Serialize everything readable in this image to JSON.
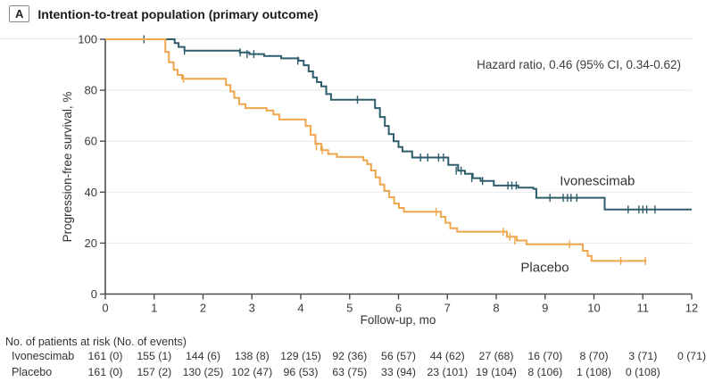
{
  "title": {
    "panel_label": "A",
    "text": "Intention-to-treat population (primary outcome)"
  },
  "chart_data": {
    "type": "line",
    "subtype": "kaplan-meier-step",
    "title": "Intention-to-treat population (primary outcome)",
    "xlabel": "Follow-up, mo",
    "ylabel": "Progression-free survival, %",
    "xlim": [
      0,
      12
    ],
    "ylim": [
      0,
      100
    ],
    "xticks": [
      0,
      1,
      2,
      3,
      4,
      5,
      6,
      7,
      8,
      9,
      10,
      11,
      12
    ],
    "yticks": [
      0,
      20,
      40,
      60,
      80,
      100
    ],
    "grid": "horizontal",
    "legend_position": "curve-labels-inline",
    "annotation": "Hazard ratio, 0.46 (95% CI, 0.34-0.62)",
    "series": [
      {
        "name": "Ivonescimab",
        "color": "#2F5D6C",
        "label_anchor": {
          "t": 9.3,
          "pct": 42.8
        },
        "steps": [
          [
            0,
            100
          ],
          [
            1.35,
            100
          ],
          [
            1.42,
            98.5
          ],
          [
            1.5,
            97
          ],
          [
            1.62,
            95.5
          ],
          [
            2.6,
            95.5
          ],
          [
            2.75,
            94.8
          ],
          [
            2.95,
            94.2
          ],
          [
            3.25,
            93.4
          ],
          [
            3.6,
            92.5
          ],
          [
            3.95,
            91.6
          ],
          [
            4.06,
            89.8
          ],
          [
            4.16,
            87.4
          ],
          [
            4.25,
            85
          ],
          [
            4.33,
            83.2
          ],
          [
            4.42,
            81.5
          ],
          [
            4.52,
            78.5
          ],
          [
            4.62,
            76.3
          ],
          [
            5.45,
            76.3
          ],
          [
            5.52,
            73
          ],
          [
            5.62,
            69.5
          ],
          [
            5.72,
            66
          ],
          [
            5.8,
            62.8
          ],
          [
            5.9,
            60
          ],
          [
            6.0,
            57.7
          ],
          [
            6.08,
            56
          ],
          [
            6.28,
            53.6
          ],
          [
            6.97,
            53.6
          ],
          [
            7.02,
            50.7
          ],
          [
            7.22,
            48.4
          ],
          [
            7.36,
            47.2
          ],
          [
            7.52,
            45.5
          ],
          [
            7.68,
            44.4
          ],
          [
            7.95,
            42.6
          ],
          [
            8.45,
            41.8
          ],
          [
            8.76,
            41.3
          ],
          [
            8.82,
            37.8
          ],
          [
            10.18,
            37.8
          ],
          [
            10.22,
            33.2
          ],
          [
            12,
            33.2
          ]
        ],
        "censor_ticks": [
          [
            0.79,
            100
          ],
          [
            1.62,
            95.5
          ],
          [
            2.76,
            94.8
          ],
          [
            2.9,
            94.2
          ],
          [
            3.04,
            94.2
          ],
          [
            3.94,
            91.6
          ],
          [
            5.16,
            76.3
          ],
          [
            6.45,
            53.6
          ],
          [
            6.6,
            53.6
          ],
          [
            6.82,
            53.6
          ],
          [
            6.92,
            53.6
          ],
          [
            7.18,
            48.4
          ],
          [
            7.28,
            48.4
          ],
          [
            7.5,
            45.5
          ],
          [
            7.72,
            44.4
          ],
          [
            8.24,
            42.6
          ],
          [
            8.32,
            42.6
          ],
          [
            8.41,
            42.6
          ],
          [
            9.1,
            37.8
          ],
          [
            9.37,
            37.8
          ],
          [
            9.46,
            37.8
          ],
          [
            9.53,
            37.8
          ],
          [
            9.65,
            37.8
          ],
          [
            10.7,
            33.2
          ],
          [
            10.92,
            33.2
          ],
          [
            11.0,
            33.2
          ],
          [
            11.08,
            33.2
          ],
          [
            11.25,
            33.2
          ]
        ]
      },
      {
        "name": "Placebo",
        "color": "#EFA64C",
        "label_anchor": {
          "t": 8.5,
          "pct": 8.7
        },
        "steps": [
          [
            0,
            100
          ],
          [
            1.15,
            100
          ],
          [
            1.23,
            95
          ],
          [
            1.3,
            91
          ],
          [
            1.4,
            88
          ],
          [
            1.48,
            86
          ],
          [
            1.57,
            84.5
          ],
          [
            2.37,
            84.5
          ],
          [
            2.47,
            82
          ],
          [
            2.56,
            79.5
          ],
          [
            2.64,
            77
          ],
          [
            2.74,
            74.5
          ],
          [
            2.87,
            73
          ],
          [
            3.3,
            72
          ],
          [
            3.44,
            70.5
          ],
          [
            3.56,
            68.5
          ],
          [
            4.1,
            66
          ],
          [
            4.2,
            62.5
          ],
          [
            4.3,
            59
          ],
          [
            4.42,
            56.5
          ],
          [
            4.56,
            55
          ],
          [
            4.74,
            53.8
          ],
          [
            5.28,
            52.5
          ],
          [
            5.36,
            51
          ],
          [
            5.44,
            48.5
          ],
          [
            5.53,
            45.8
          ],
          [
            5.62,
            43
          ],
          [
            5.71,
            40.5
          ],
          [
            5.81,
            38
          ],
          [
            5.91,
            35.5
          ],
          [
            6.01,
            33.8
          ],
          [
            6.11,
            32.3
          ],
          [
            6.75,
            32.3
          ],
          [
            6.87,
            30.3
          ],
          [
            6.96,
            28
          ],
          [
            7.06,
            25.8
          ],
          [
            7.2,
            24.5
          ],
          [
            8.1,
            24.5
          ],
          [
            8.22,
            22.5
          ],
          [
            8.42,
            21
          ],
          [
            8.62,
            19.5
          ],
          [
            9.68,
            19.5
          ],
          [
            9.77,
            17
          ],
          [
            9.87,
            15
          ],
          [
            9.95,
            13
          ],
          [
            11.07,
            13
          ]
        ],
        "censor_ticks": [
          [
            1.6,
            84.5
          ],
          [
            4.32,
            58
          ],
          [
            4.44,
            56.5
          ],
          [
            6.77,
            32.3
          ],
          [
            8.14,
            24.5
          ],
          [
            8.28,
            22.5
          ],
          [
            8.38,
            21
          ],
          [
            9.5,
            19.5
          ],
          [
            10.55,
            13
          ],
          [
            11.05,
            13
          ]
        ]
      }
    ]
  },
  "risk_table": {
    "header": "No. of patients at risk (No. of events)",
    "rows": [
      {
        "label": "Ivonescimab",
        "values": [
          "161 (0)",
          "155 (1)",
          "144 (6)",
          "138 (8)",
          "129 (15)",
          "92 (36)",
          "56 (57)",
          "44 (62)",
          "27 (68)",
          "16 (70)",
          "8 (70)",
          "3 (71)",
          "0 (71)"
        ]
      },
      {
        "label": "Placebo",
        "values": [
          "161 (0)",
          "157 (2)",
          "130 (25)",
          "102 (47)",
          "96 (53)",
          "63 (75)",
          "33 (94)",
          "23 (101)",
          "19 (104)",
          "8 (106)",
          "1 (108)",
          "0 (108)"
        ]
      }
    ]
  }
}
